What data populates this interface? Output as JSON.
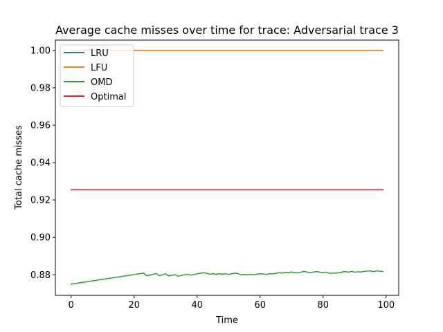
{
  "chart_data": {
    "type": "line",
    "title": "Average cache misses over time for trace: Adversarial trace 3",
    "xlabel": "Time",
    "ylabel": "Total cache misses",
    "xlim": [
      -5,
      104
    ],
    "ylim": [
      0.869,
      1.0055
    ],
    "xticks": [
      0,
      20,
      40,
      60,
      80,
      100
    ],
    "xtick_labels": [
      "0",
      "20",
      "40",
      "60",
      "80",
      "100"
    ],
    "yticks": [
      0.88,
      0.9,
      0.92,
      0.94,
      0.96,
      0.98,
      1.0
    ],
    "ytick_labels": [
      "0.88",
      "0.90",
      "0.92",
      "0.94",
      "0.96",
      "0.98",
      "1.00"
    ],
    "grid": false,
    "legend_position": "upper-left",
    "series": [
      {
        "name": "LRU",
        "color": "#1f77b4",
        "x": [
          0,
          99
        ],
        "y": [
          1.0,
          1.0
        ]
      },
      {
        "name": "LFU",
        "color": "#ff7f0e",
        "x": [
          0,
          99
        ],
        "y": [
          1.0,
          1.0
        ]
      },
      {
        "name": "OMD",
        "color": "#2ca02c",
        "x": [
          0,
          23,
          24,
          26,
          27,
          28,
          30,
          31,
          33,
          34,
          35,
          37,
          38,
          40,
          42,
          43,
          44,
          45,
          46,
          47,
          48,
          49,
          50,
          51,
          52,
          53,
          54,
          55,
          56,
          57,
          58,
          59,
          60,
          61,
          62,
          63,
          64,
          65,
          66,
          67,
          68,
          69,
          70,
          71,
          72,
          73,
          74,
          75,
          76,
          77,
          78,
          79,
          80,
          81,
          82,
          83,
          84,
          85,
          86,
          87,
          88,
          89,
          90,
          91,
          92,
          93,
          94,
          95,
          96,
          97,
          98,
          99
        ],
        "y": [
          0.875,
          0.8809,
          0.8795,
          0.8802,
          0.8807,
          0.8795,
          0.8805,
          0.8794,
          0.8801,
          0.8792,
          0.8797,
          0.8803,
          0.8798,
          0.8805,
          0.8811,
          0.8808,
          0.8803,
          0.8806,
          0.8802,
          0.8806,
          0.8803,
          0.8806,
          0.8802,
          0.8806,
          0.8809,
          0.8806,
          0.8799,
          0.8802,
          0.8799,
          0.8803,
          0.88,
          0.8803,
          0.8806,
          0.8804,
          0.8802,
          0.8806,
          0.8805,
          0.8808,
          0.8811,
          0.8809,
          0.8813,
          0.8812,
          0.8815,
          0.8811,
          0.881,
          0.8814,
          0.8818,
          0.8814,
          0.8812,
          0.8815,
          0.8817,
          0.8814,
          0.8812,
          0.8814,
          0.8808,
          0.8809,
          0.8809,
          0.8811,
          0.8815,
          0.8817,
          0.8814,
          0.8818,
          0.8814,
          0.8816,
          0.8815,
          0.8818,
          0.882,
          0.8821,
          0.8817,
          0.8821,
          0.8819,
          0.8818
        ]
      },
      {
        "name": "Optimal",
        "color": "#d62728",
        "x": [
          0,
          99
        ],
        "y": [
          0.9255,
          0.9255
        ]
      }
    ]
  }
}
